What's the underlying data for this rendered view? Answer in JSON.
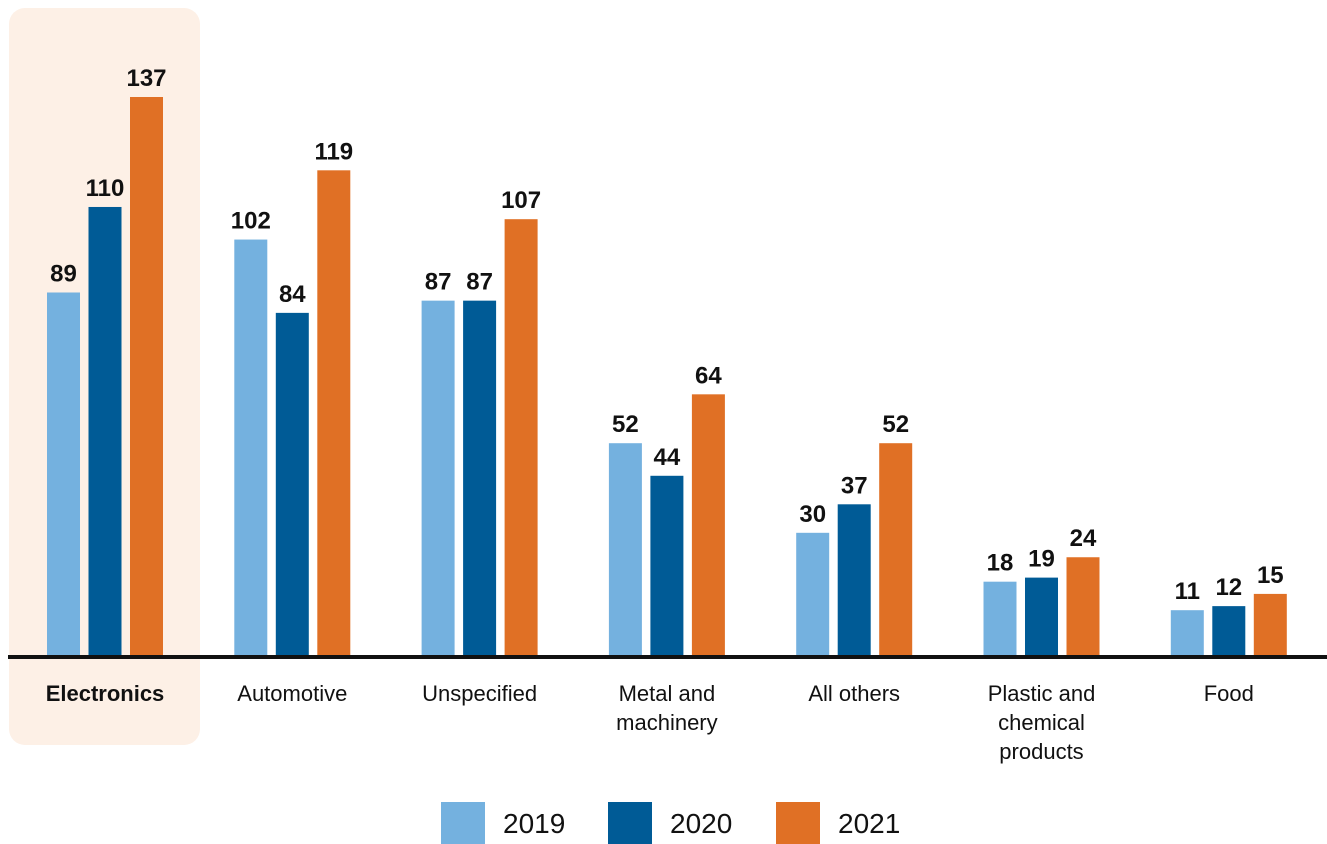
{
  "chart_data": {
    "type": "bar",
    "categories": [
      [
        "Electronics"
      ],
      [
        "Automotive"
      ],
      [
        "Unspecified"
      ],
      [
        "Metal and",
        "machinery"
      ],
      [
        "All others"
      ],
      [
        "Plastic and",
        "chemical",
        "products"
      ],
      [
        "Food"
      ]
    ],
    "highlighted_category": "Electronics",
    "series": [
      {
        "name": "2019",
        "color": "#74b1df",
        "values": [
          89,
          102,
          87,
          52,
          30,
          18,
          11
        ]
      },
      {
        "name": "2020",
        "color": "#005b96",
        "values": [
          110,
          84,
          87,
          44,
          37,
          19,
          12
        ]
      },
      {
        "name": "2021",
        "color": "#e07025",
        "values": [
          137,
          119,
          107,
          64,
          52,
          24,
          15
        ]
      }
    ],
    "ylim": [
      0,
      137
    ],
    "grid": false,
    "legend_position": "bottom-center",
    "data_labels": true,
    "highlight_color": "#fdf0e6",
    "axis_color": "#111111"
  }
}
